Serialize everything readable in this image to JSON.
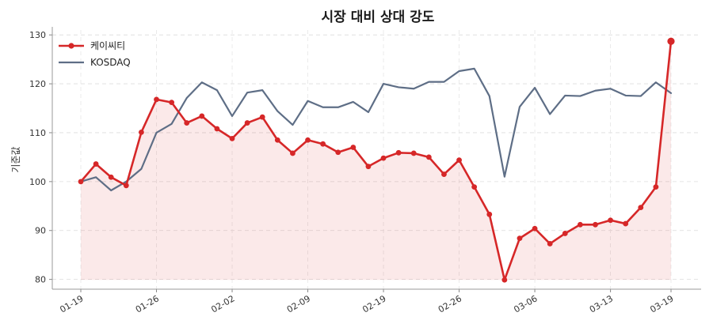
{
  "chart_data": {
    "type": "line",
    "title": "시장 대비 상대 강도",
    "xlabel": "",
    "ylabel": "기준값",
    "ylim": [
      78,
      131
    ],
    "yticks": [
      80,
      90,
      100,
      110,
      120,
      130
    ],
    "xtick_labels": [
      "01-19",
      "01-26",
      "02-02",
      "02-09",
      "02-19",
      "02-26",
      "03-06",
      "03-13",
      "03-19"
    ],
    "xtick_index": [
      0,
      5,
      10,
      15,
      20,
      25,
      30,
      35,
      39
    ],
    "grid": true,
    "legend": "top-left",
    "series": [
      {
        "name": "케이씨티",
        "color": "#d62728",
        "marker": "circle",
        "fill": true,
        "values": [
          100.0,
          103.6,
          100.9,
          99.2,
          110.1,
          116.8,
          116.2,
          112.0,
          113.4,
          110.8,
          108.8,
          112.0,
          113.2,
          108.5,
          105.8,
          108.5,
          107.7,
          106.0,
          107.0,
          103.1,
          104.8,
          105.9,
          105.8,
          105.0,
          101.5,
          104.4,
          98.9,
          93.3,
          79.9,
          88.4,
          90.4,
          87.3,
          89.4,
          91.2,
          91.2,
          92.1,
          91.4,
          94.7,
          98.9,
          128.7
        ]
      },
      {
        "name": "KOSDAQ",
        "color": "#5e6e86",
        "marker": "none",
        "fill": false,
        "values": [
          100.0,
          100.9,
          98.2,
          100.0,
          102.6,
          110.0,
          111.8,
          117.1,
          120.3,
          118.7,
          113.4,
          118.2,
          118.7,
          114.4,
          111.6,
          116.5,
          115.2,
          115.2,
          116.3,
          114.2,
          120.0,
          119.3,
          119.0,
          120.4,
          120.4,
          122.6,
          123.1,
          117.5,
          101.0,
          115.3,
          119.2,
          113.8,
          117.6,
          117.5,
          118.6,
          119.0,
          117.6,
          117.5,
          120.3,
          118.1
        ]
      }
    ]
  }
}
